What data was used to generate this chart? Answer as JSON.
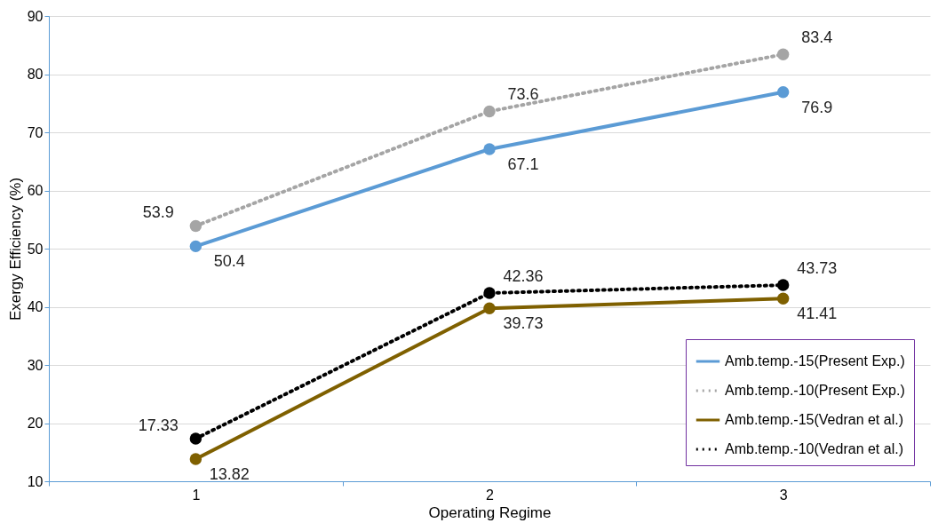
{
  "chart_data": {
    "type": "line",
    "xlabel": "Operating Regime",
    "ylabel": "Exergy Efficiency (%)",
    "categories": [
      "1",
      "2",
      "3"
    ],
    "series": [
      {
        "name": "Amb.temp.-15(Present Exp.)",
        "color": "#5b9bd5",
        "line_style": "solid",
        "values": [
          50.4,
          67.1,
          76.9
        ]
      },
      {
        "name": "Amb.temp.-10(Present Exp.)",
        "color": "#a5a5a5",
        "line_style": "dotted",
        "values": [
          53.9,
          73.6,
          83.4
        ]
      },
      {
        "name": "Amb.temp.-15(Vedran et al.)",
        "color": "#7f6000",
        "line_style": "solid",
        "values": [
          13.82,
          39.73,
          41.41
        ]
      },
      {
        "name": "Amb.temp.-10(Vedran et al.)",
        "color": "#000000",
        "line_style": "dotted",
        "values": [
          17.33,
          42.36,
          43.73
        ]
      }
    ],
    "ylim": [
      10,
      90
    ],
    "yticks": [
      10,
      20,
      30,
      40,
      50,
      60,
      70,
      80,
      90
    ],
    "grid": "y",
    "legend": "bottom right",
    "marker": "circle",
    "data_labels": true
  }
}
